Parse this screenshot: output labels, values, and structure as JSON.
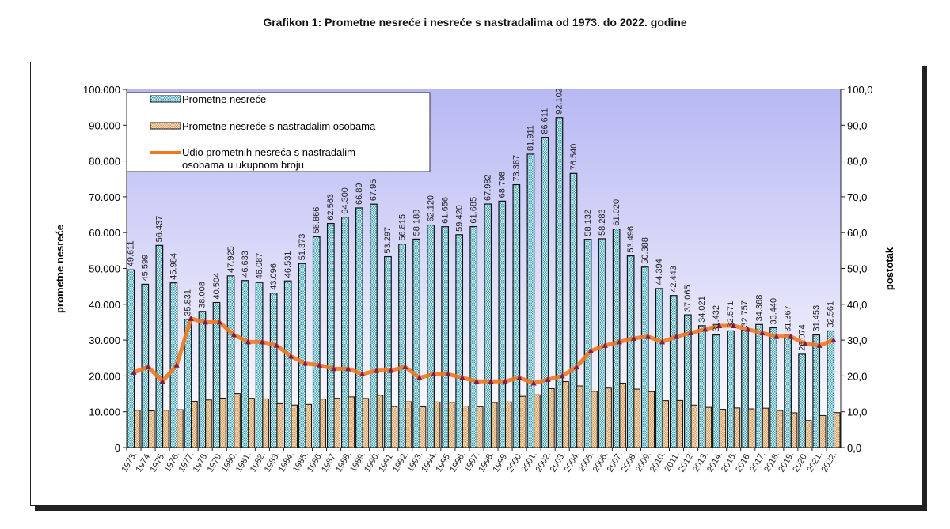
{
  "chart_data": {
    "type": "bar",
    "title": "Grafikon 1: Prometne nesreće i nesreće s nastradalima od 1973. do 2022. godine",
    "ylabel": "prometne nesreće",
    "y2label": "postotak",
    "ylim": [
      0,
      100000
    ],
    "y2lim": [
      0,
      100
    ],
    "yticks": [
      "0",
      "10.000",
      "20.000",
      "30.000",
      "40.000",
      "50.000",
      "60.000",
      "70.000",
      "80.000",
      "90.000",
      "100.000"
    ],
    "y2ticks": [
      "0,0",
      "10,0",
      "20,0",
      "30,0",
      "40,0",
      "50,0",
      "60,0",
      "70,0",
      "80,0",
      "90,0",
      "100,0"
    ],
    "legend": "top-left",
    "categories": [
      "1973.",
      "1974.",
      "1975.",
      "1976.",
      "1977.",
      "1978.",
      "1979.",
      "1980.",
      "1981.",
      "1982.",
      "1983.",
      "1984.",
      "1985.",
      "1986.",
      "1987.",
      "1988.",
      "1989.",
      "1990.",
      "1991.",
      "1992.",
      "1993.",
      "1994.",
      "1995.",
      "1996.",
      "1997.",
      "1998.",
      "1999.",
      "2000.",
      "2001.",
      "2002.",
      "2003.",
      "2004.",
      "2005.",
      "2006.",
      "2007.",
      "2008.",
      "2009.",
      "2010.",
      "2011.",
      "2012.",
      "2013.",
      "2014.",
      "2015.",
      "2016.",
      "2017.",
      "2018.",
      "2019.",
      "2020.",
      "2021.",
      "2022."
    ],
    "series": [
      {
        "name": "Prometne nesreće",
        "type": "bar",
        "color": "#7ec8d8",
        "labels": [
          "49.611",
          "45.599",
          "56.437",
          "45.984",
          "35.831",
          "38.008",
          "40.504",
          "47.925",
          "46.633",
          "46.087",
          "43.096",
          "46.531",
          "51.373",
          "58.866",
          "62.563",
          "64.300",
          "66.89",
          "67.95",
          "53.297",
          "56.815",
          "58.188",
          "62.120",
          "61.656",
          "59.420",
          "61.685",
          "67.982",
          "68.798",
          "73.387",
          "81.911",
          "86.611",
          "92.102",
          "76.540",
          "58.132",
          "58.283",
          "61.020",
          "53.496",
          "50.388",
          "44.394",
          "42.443",
          "37.065",
          "34.021",
          "31.432",
          "32.571",
          "32.757",
          "34.368",
          "33.440",
          "31.367",
          "26.074",
          "31.453",
          "32.561"
        ],
        "values": [
          49611,
          45599,
          56437,
          45984,
          35831,
          38008,
          40504,
          47925,
          46633,
          46087,
          43096,
          46531,
          51373,
          58866,
          62563,
          64300,
          66890,
          67950,
          53297,
          56815,
          58188,
          62120,
          61656,
          59420,
          61685,
          67982,
          68798,
          73387,
          81911,
          86611,
          92102,
          76540,
          58132,
          58283,
          61020,
          53496,
          50388,
          44394,
          42443,
          37065,
          34021,
          31432,
          32571,
          32757,
          34368,
          33440,
          31367,
          26074,
          31453,
          32561
        ]
      },
      {
        "name": "Prometne nesreće s nastradalim osobama",
        "type": "bar",
        "color": "#f2c08e",
        "values": [
          10420,
          10260,
          10440,
          10580,
          12900,
          13300,
          13800,
          15100,
          13760,
          13600,
          12280,
          11870,
          12070,
          13540,
          13760,
          14150,
          13710,
          14610,
          11460,
          12780,
          11350,
          12730,
          12640,
          11590,
          11410,
          12580,
          12730,
          14310,
          14740,
          16460,
          18420,
          17220,
          15700,
          16610,
          18000,
          16320,
          15620,
          13100,
          13160,
          11860,
          11230,
          10690,
          11070,
          10810,
          11000,
          10370,
          9720,
          7560,
          8960,
          9770
        ]
      },
      {
        "name": "Udio prometnih nesreća s nastradalim osobama u ukupnom broju",
        "type": "line",
        "axis": "right",
        "color": "#f07820",
        "values": [
          21,
          22.5,
          18.5,
          23,
          36,
          35,
          35,
          31.5,
          29.5,
          29.5,
          28.5,
          25.5,
          23.5,
          23,
          22,
          22,
          20.5,
          21.5,
          21.5,
          22.5,
          19.5,
          20.5,
          20.5,
          19.5,
          18.5,
          18.5,
          18.5,
          19.5,
          18,
          19,
          20,
          22.5,
          27,
          28.5,
          29.5,
          30.5,
          31,
          29.5,
          31,
          32,
          33,
          34,
          34,
          33,
          32,
          31,
          31,
          29,
          28.5,
          30
        ]
      }
    ],
    "legend_lines": [
      "Prometne nesreće",
      "Prometne nesreće s nastradalim osobama",
      "Udio prometnih nesreća s nastradalim",
      "osobama u ukupnom broju"
    ]
  }
}
